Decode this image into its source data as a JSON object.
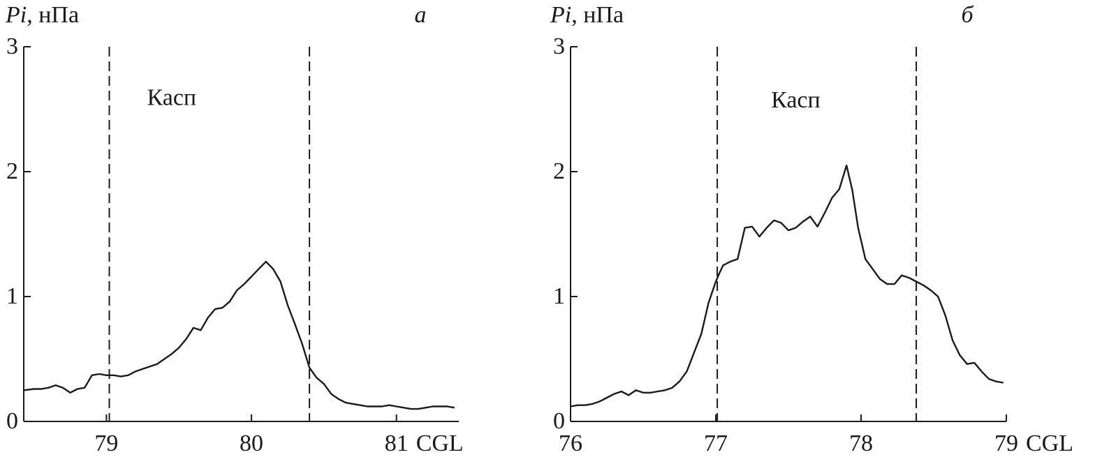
{
  "chart_data": [
    {
      "type": "line",
      "panel_label": "а",
      "ylabel_italic": "Pi",
      "ylabel_unit": ", нПа",
      "xlabel": "CGL",
      "xlim": [
        78.43,
        81.43
      ],
      "ylim": [
        0,
        3
      ],
      "xticks": [
        79,
        80,
        81
      ],
      "yticks": [
        0,
        1,
        2,
        3
      ],
      "markers": [
        79.02,
        80.4
      ],
      "region_label": "Касп",
      "region_x": 79.45,
      "region_y": 2.6,
      "grid": false,
      "x": [
        78.43,
        78.5,
        78.55,
        78.6,
        78.65,
        78.7,
        78.75,
        78.8,
        78.85,
        78.9,
        78.95,
        79.0,
        79.05,
        79.1,
        79.15,
        79.2,
        79.25,
        79.3,
        79.35,
        79.4,
        79.45,
        79.5,
        79.55,
        79.6,
        79.65,
        79.7,
        79.75,
        79.8,
        79.85,
        79.9,
        79.95,
        80.0,
        80.05,
        80.1,
        80.15,
        80.2,
        80.25,
        80.3,
        80.35,
        80.4,
        80.45,
        80.5,
        80.55,
        80.6,
        80.65,
        80.7,
        80.75,
        80.8,
        80.85,
        80.9,
        80.95,
        81.0,
        81.05,
        81.1,
        81.15,
        81.2,
        81.25,
        81.3,
        81.35,
        81.4
      ],
      "y": [
        0.25,
        0.26,
        0.26,
        0.27,
        0.29,
        0.27,
        0.23,
        0.26,
        0.27,
        0.37,
        0.38,
        0.37,
        0.37,
        0.36,
        0.37,
        0.4,
        0.42,
        0.44,
        0.46,
        0.5,
        0.54,
        0.59,
        0.66,
        0.75,
        0.73,
        0.83,
        0.9,
        0.91,
        0.96,
        1.05,
        1.1,
        1.16,
        1.22,
        1.28,
        1.22,
        1.12,
        0.93,
        0.78,
        0.62,
        0.43,
        0.35,
        0.3,
        0.22,
        0.18,
        0.15,
        0.14,
        0.13,
        0.12,
        0.12,
        0.12,
        0.13,
        0.12,
        0.11,
        0.1,
        0.1,
        0.11,
        0.12,
        0.12,
        0.12,
        0.11
      ]
    },
    {
      "type": "line",
      "panel_label": "б",
      "ylabel_italic": "Pi",
      "ylabel_unit": ", нПа",
      "xlabel": "CGL",
      "xlim": [
        76,
        79
      ],
      "ylim": [
        0,
        3
      ],
      "xticks": [
        76,
        77,
        78,
        79
      ],
      "yticks": [
        0,
        1,
        2,
        3
      ],
      "markers": [
        77.01,
        78.38
      ],
      "region_label": "Касп",
      "region_x": 77.55,
      "region_y": 2.58,
      "grid": false,
      "x": [
        76.0,
        76.05,
        76.1,
        76.15,
        76.2,
        76.25,
        76.3,
        76.35,
        76.4,
        76.45,
        76.5,
        76.55,
        76.6,
        76.65,
        76.7,
        76.75,
        76.8,
        76.85,
        76.9,
        76.95,
        77.0,
        77.03,
        77.05,
        77.1,
        77.15,
        77.2,
        77.25,
        77.3,
        77.35,
        77.4,
        77.45,
        77.5,
        77.55,
        77.6,
        77.65,
        77.7,
        77.75,
        77.8,
        77.85,
        77.9,
        77.94,
        77.98,
        78.03,
        78.08,
        78.13,
        78.18,
        78.23,
        78.28,
        78.33,
        78.38,
        78.43,
        78.48,
        78.53,
        78.58,
        78.63,
        78.68,
        78.73,
        78.78,
        78.83,
        78.88,
        78.93,
        78.98
      ],
      "y": [
        0.12,
        0.13,
        0.13,
        0.14,
        0.16,
        0.19,
        0.22,
        0.24,
        0.21,
        0.25,
        0.23,
        0.23,
        0.24,
        0.25,
        0.27,
        0.32,
        0.4,
        0.55,
        0.7,
        0.95,
        1.12,
        1.2,
        1.25,
        1.28,
        1.3,
        1.55,
        1.56,
        1.48,
        1.55,
        1.61,
        1.59,
        1.53,
        1.55,
        1.6,
        1.64,
        1.56,
        1.67,
        1.79,
        1.86,
        2.05,
        1.85,
        1.55,
        1.3,
        1.22,
        1.14,
        1.1,
        1.1,
        1.17,
        1.15,
        1.12,
        1.09,
        1.05,
        1.0,
        0.85,
        0.65,
        0.53,
        0.46,
        0.47,
        0.4,
        0.34,
        0.32,
        0.31
      ]
    }
  ]
}
